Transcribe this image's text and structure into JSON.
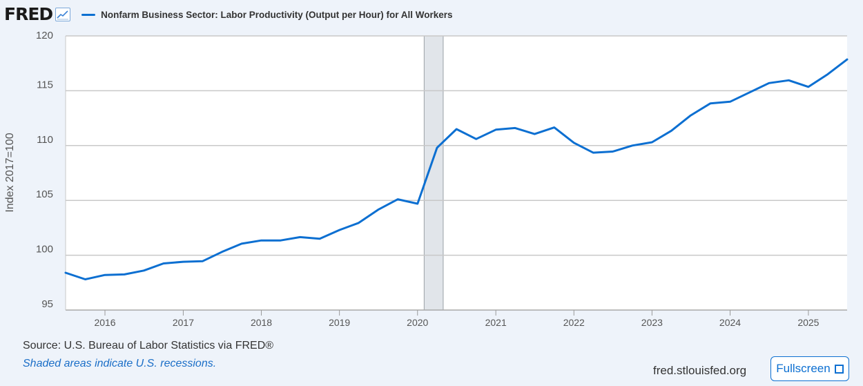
{
  "header": {
    "logo": "FRED",
    "logo_icon": "line-graph-icon"
  },
  "chart_data": {
    "type": "line",
    "title": "",
    "xlabel": "",
    "ylabel": "Index 2017=100",
    "xlim": [
      "2015-07-01",
      "2025-07-01"
    ],
    "ylim": [
      95,
      120
    ],
    "y_ticks": [
      95,
      100,
      105,
      110,
      115,
      120
    ],
    "x_ticks": [
      "2016",
      "2017",
      "2018",
      "2019",
      "2020",
      "2021",
      "2022",
      "2023",
      "2024",
      "2025"
    ],
    "grid": true,
    "legend_position": "top-left",
    "recessions": [
      {
        "start": "2020-02-01",
        "end": "2020-04-30"
      }
    ],
    "series": [
      {
        "name": "Nonfarm Business Sector: Labor Productivity (Output per Hour) for All Workers",
        "color": "#0c6fd1",
        "x": [
          "2015-07-01",
          "2015-10-01",
          "2016-01-01",
          "2016-04-01",
          "2016-07-01",
          "2016-10-01",
          "2017-01-01",
          "2017-04-01",
          "2017-07-01",
          "2017-10-01",
          "2018-01-01",
          "2018-04-01",
          "2018-07-01",
          "2018-10-01",
          "2019-01-01",
          "2019-04-01",
          "2019-07-01",
          "2019-10-01",
          "2020-01-01",
          "2020-04-01",
          "2020-07-01",
          "2020-10-01",
          "2021-01-01",
          "2021-04-01",
          "2021-07-01",
          "2021-10-01",
          "2022-01-01",
          "2022-04-01",
          "2022-07-01",
          "2022-10-01",
          "2023-01-01",
          "2023-04-01",
          "2023-07-01",
          "2023-10-01",
          "2024-01-01",
          "2024-04-01",
          "2024-07-01",
          "2024-10-01",
          "2025-01-01",
          "2025-04-01",
          "2025-07-01"
        ],
        "values": [
          98.4,
          97.8,
          98.2,
          98.25,
          98.6,
          99.25,
          99.4,
          99.45,
          100.3,
          101.05,
          101.35,
          101.35,
          101.65,
          101.5,
          102.3,
          102.95,
          104.15,
          105.1,
          104.7,
          109.8,
          111.5,
          110.6,
          111.45,
          111.6,
          111.05,
          111.65,
          110.25,
          109.35,
          109.45,
          110.0,
          110.3,
          111.35,
          112.75,
          113.85,
          114.0,
          114.85,
          115.7,
          115.95,
          115.35,
          116.5,
          117.85
        ]
      }
    ]
  },
  "footer": {
    "source": "Source: U.S. Bureau of Labor Statistics via FRED®",
    "note": "Shaded areas indicate U.S. recessions.",
    "site": "fred.stlouisfed.org",
    "fullscreen_label": "Fullscreen",
    "fullscreen_icon": "fullscreen-icon"
  }
}
